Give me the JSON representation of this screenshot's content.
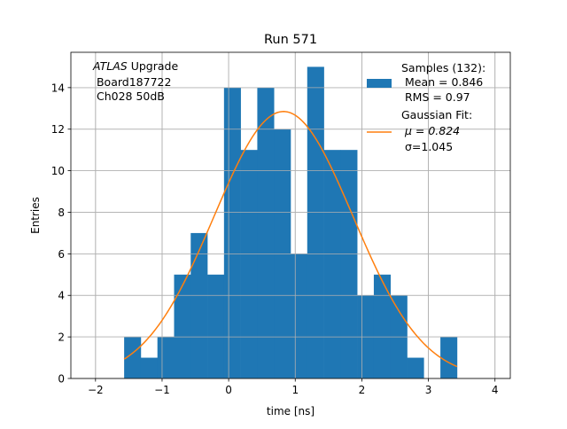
{
  "chart_data": {
    "type": "bar",
    "title": "Run 571",
    "xlabel": "time [ns]",
    "ylabel": "Entries",
    "xlim": [
      -2.37,
      4.23
    ],
    "ylim": [
      0,
      15.7
    ],
    "xticks": [
      -2,
      -1,
      0,
      1,
      2,
      3,
      4
    ],
    "xtick_labels": [
      "−2",
      "−1",
      "0",
      "1",
      "2",
      "3",
      "4"
    ],
    "yticks": [
      0,
      2,
      4,
      6,
      8,
      10,
      12,
      14
    ],
    "ytick_labels": [
      "0",
      "2",
      "4",
      "6",
      "8",
      "10",
      "12",
      "14"
    ],
    "grid": true,
    "bin_start": -1.57,
    "bin_width": 0.25,
    "values": [
      2,
      1,
      2,
      5,
      7,
      5,
      14,
      11,
      14,
      12,
      6,
      15,
      11,
      11,
      4,
      5,
      4,
      1,
      0,
      2
    ],
    "fit": {
      "mu": 0.824,
      "sigma": 1.045,
      "amplitude": 12.85,
      "range": [
        -1.57,
        3.43
      ]
    },
    "annotation": {
      "italic": "ATLAS",
      "line1_rest": " Upgrade",
      "line2": " Board187722",
      "line3": " Ch028 50dB"
    },
    "legend": {
      "placement": "top-right",
      "samples": [
        " Samples (132):",
        " Mean = 0.846",
        " RMS = 0.97"
      ],
      "fit": [
        " Gaussian Fit:",
        " μ = 0.824",
        " σ=1.045"
      ]
    },
    "colors": {
      "bars": "#1f77b4",
      "fit": "#ff7f0e",
      "grid": "#b0b0b0"
    }
  }
}
